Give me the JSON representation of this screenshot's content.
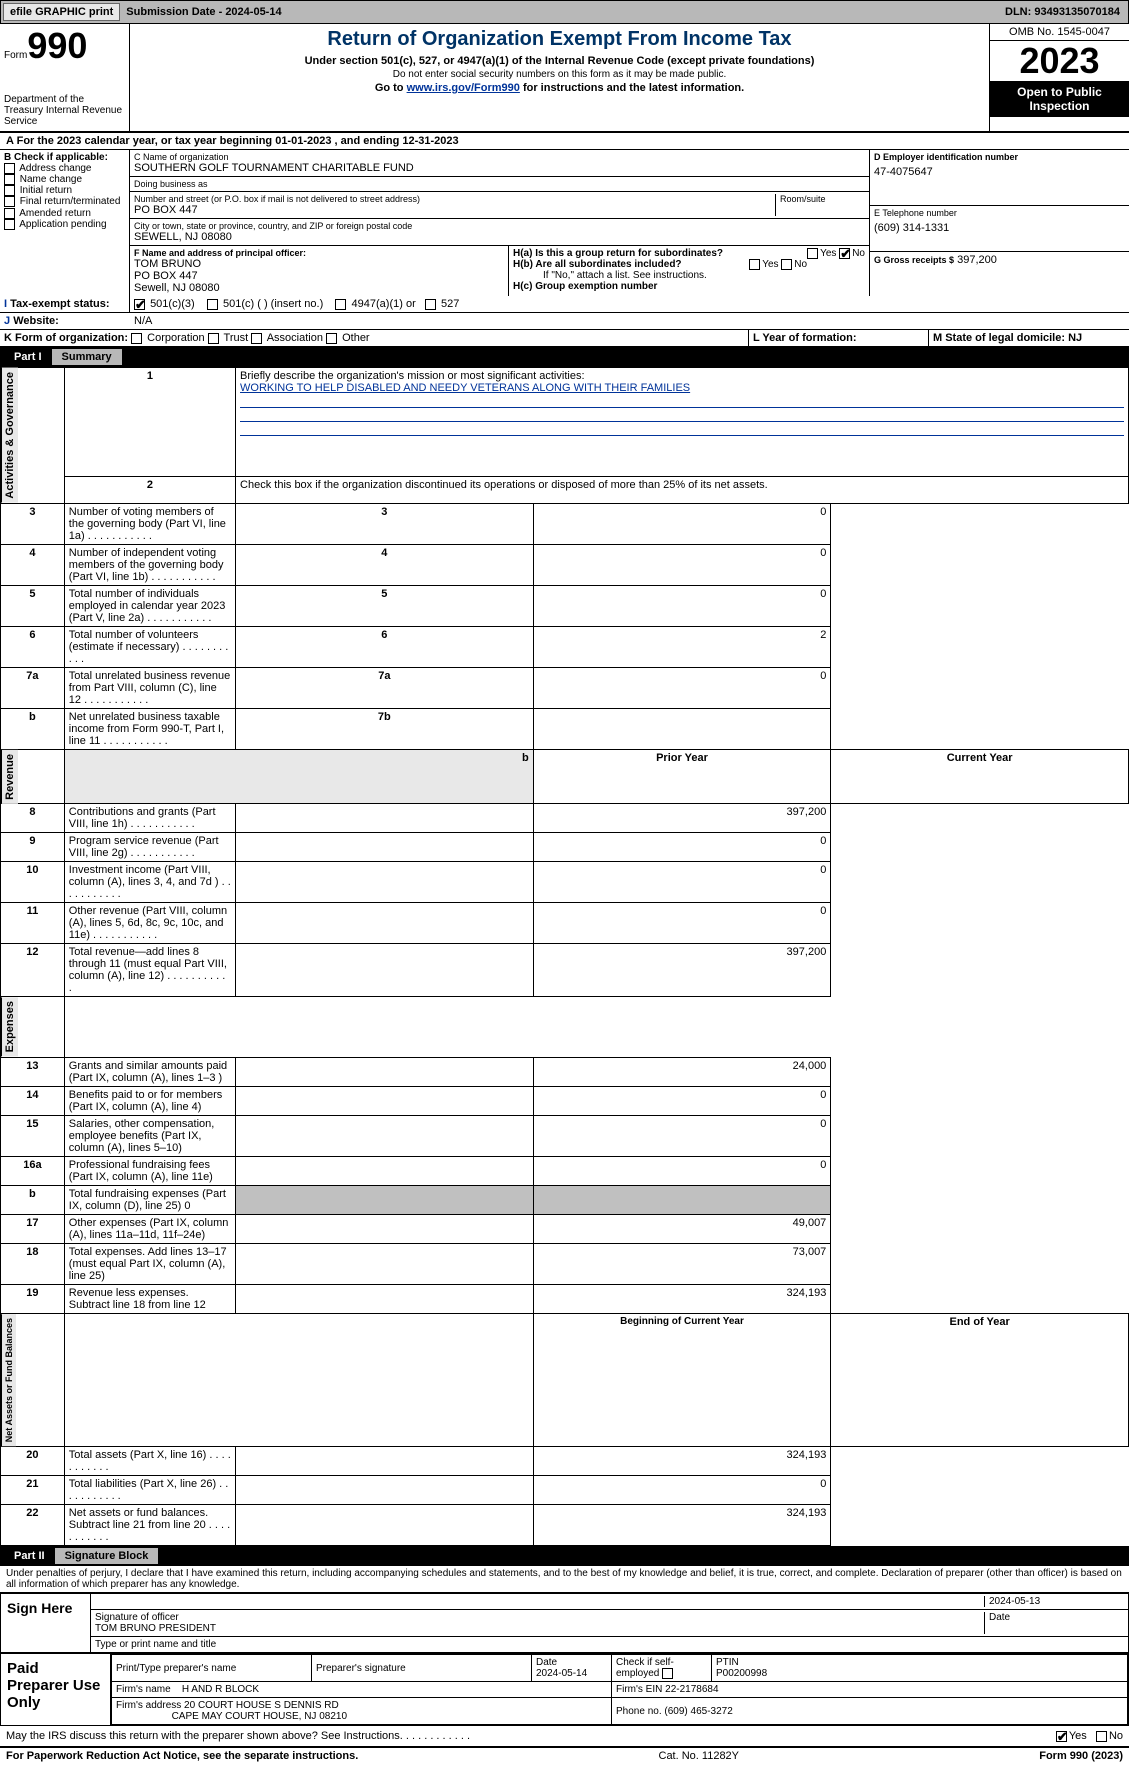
{
  "topbar": {
    "efile": "efile GRAPHIC print",
    "submission": "Submission Date - 2024-05-14",
    "dln": "DLN: 93493135070184"
  },
  "hdr": {
    "form_label": "Form",
    "form_no": "990",
    "dept": "Department of the Treasury Internal Revenue Service",
    "title": "Return of Organization Exempt From Income Tax",
    "sub": "Under section 501(c), 527, or 4947(a)(1) of the Internal Revenue Code (except private foundations)",
    "sub2": "Do not enter social security numbers on this form as it may be made public.",
    "goto_pre": "Go to ",
    "goto_link": "www.irs.gov/Form990",
    "goto_post": " for instructions and the latest information.",
    "omb": "OMB No. 1545-0047",
    "year": "2023",
    "open": "Open to Public Inspection"
  },
  "a": {
    "text": "For the 2023 calendar year, or tax year beginning 01-01-2023   , and ending 12-31-2023"
  },
  "b": {
    "label": "B Check if applicable:",
    "items": [
      "Address change",
      "Name change",
      "Initial return",
      "Final return/terminated",
      "Amended return",
      "Application pending"
    ]
  },
  "c": {
    "name_lbl": "C Name of organization",
    "name": "SOUTHERN GOLF TOURNAMENT CHARITABLE FUND",
    "dba_lbl": "Doing business as",
    "dba": "",
    "addr_lbl": "Number and street (or P.O. box if mail is not delivered to street address)",
    "room_lbl": "Room/suite",
    "addr": "PO BOX 447",
    "city_lbl": "City or town, state or province, country, and ZIP or foreign postal code",
    "city": "SEWELL, NJ  08080"
  },
  "d": {
    "lbl": "D Employer identification number",
    "val": "47-4075647"
  },
  "e": {
    "lbl": "E Telephone number",
    "val": "(609) 314-1331"
  },
  "g": {
    "lbl": "G Gross receipts $",
    "val": "397,200"
  },
  "f": {
    "lbl": "F  Name and address of principal officer:",
    "line1": "TOM BRUNO",
    "line2": "PO BOX 447",
    "line3": "Sewell, NJ  08080"
  },
  "h": {
    "a_lbl": "H(a)  Is this a group return for subordinates?",
    "a_yes": "Yes",
    "a_no": "No",
    "b_lbl": "H(b)  Are all subordinates included?",
    "b_yes": "Yes",
    "b_no": "No",
    "b_note": "If \"No,\" attach a list. See instructions.",
    "c_lbl": "H(c)  Group exemption number"
  },
  "i": {
    "lbl": "Tax-exempt status:",
    "opt1": "501(c)(3)",
    "opt2": "501(c) (  ) (insert no.)",
    "opt3": "4947(a)(1) or",
    "opt4": "527"
  },
  "j": {
    "lbl": "Website:",
    "val": "N/A"
  },
  "k": {
    "lbl": "K Form of organization:",
    "opts": [
      "Corporation",
      "Trust",
      "Association",
      "Other"
    ]
  },
  "l": {
    "lbl": "L Year of formation:",
    "val": ""
  },
  "m": {
    "lbl": "M State of legal domicile: NJ"
  },
  "part1": {
    "num": "Part I",
    "title": "Summary"
  },
  "p1": {
    "l1_lbl": "Briefly describe the organization's mission or most significant activities:",
    "l1_val": "WORKING TO HELP DISABLED AND NEEDY VETERANS ALONG WITH THEIR FAMILIES",
    "l2": "Check this box      if the organization discontinued its operations or disposed of more than 25% of its net assets.",
    "rows_gov": [
      {
        "n": "3",
        "t": "Number of voting members of the governing body (Part VI, line 1a)",
        "box": "3",
        "v": "0"
      },
      {
        "n": "4",
        "t": "Number of independent voting members of the governing body (Part VI, line 1b)",
        "box": "4",
        "v": "0"
      },
      {
        "n": "5",
        "t": "Total number of individuals employed in calendar year 2023 (Part V, line 2a)",
        "box": "5",
        "v": "0"
      },
      {
        "n": "6",
        "t": "Total number of volunteers (estimate if necessary)",
        "box": "6",
        "v": "2"
      },
      {
        "n": "7a",
        "t": "Total unrelated business revenue from Part VIII, column (C), line 12",
        "box": "7a",
        "v": "0"
      },
      {
        "n": "b",
        "t": "Net unrelated business taxable income from Form 990-T, Part I, line 11",
        "box": "7b",
        "v": ""
      }
    ],
    "hdr_prior": "Prior Year",
    "hdr_curr": "Current Year",
    "rows_rev": [
      {
        "n": "8",
        "t": "Contributions and grants (Part VIII, line 1h)",
        "p": "",
        "c": "397,200"
      },
      {
        "n": "9",
        "t": "Program service revenue (Part VIII, line 2g)",
        "p": "",
        "c": "0"
      },
      {
        "n": "10",
        "t": "Investment income (Part VIII, column (A), lines 3, 4, and 7d )",
        "p": "",
        "c": "0"
      },
      {
        "n": "11",
        "t": "Other revenue (Part VIII, column (A), lines 5, 6d, 8c, 9c, 10c, and 11e)",
        "p": "",
        "c": "0"
      },
      {
        "n": "12",
        "t": "Total revenue—add lines 8 through 11 (must equal Part VIII, column (A), line 12)",
        "p": "",
        "c": "397,200"
      }
    ],
    "rows_exp": [
      {
        "n": "13",
        "t": "Grants and similar amounts paid (Part IX, column (A), lines 1–3 )",
        "p": "",
        "c": "24,000"
      },
      {
        "n": "14",
        "t": "Benefits paid to or for members (Part IX, column (A), line 4)",
        "p": "",
        "c": "0"
      },
      {
        "n": "15",
        "t": "Salaries, other compensation, employee benefits (Part IX, column (A), lines 5–10)",
        "p": "",
        "c": "0"
      },
      {
        "n": "16a",
        "t": "Professional fundraising fees (Part IX, column (A), line 11e)",
        "p": "",
        "c": "0"
      },
      {
        "n": "b",
        "t": "Total fundraising expenses (Part IX, column (D), line 25) 0",
        "p": "shade",
        "c": "shade"
      },
      {
        "n": "17",
        "t": "Other expenses (Part IX, column (A), lines 11a–11d, 11f–24e)",
        "p": "",
        "c": "49,007"
      },
      {
        "n": "18",
        "t": "Total expenses. Add lines 13–17 (must equal Part IX, column (A), line 25)",
        "p": "",
        "c": "73,007"
      },
      {
        "n": "19",
        "t": "Revenue less expenses. Subtract line 18 from line 12",
        "p": "",
        "c": "324,193"
      }
    ],
    "hdr_beg": "Beginning of Current Year",
    "hdr_end": "End of Year",
    "rows_net": [
      {
        "n": "20",
        "t": "Total assets (Part X, line 16)",
        "p": "",
        "c": "324,193"
      },
      {
        "n": "21",
        "t": "Total liabilities (Part X, line 26)",
        "p": "",
        "c": "0"
      },
      {
        "n": "22",
        "t": "Net assets or fund balances. Subtract line 21 from line 20",
        "p": "",
        "c": "324,193"
      }
    ],
    "tab_gov": "Activities & Governance",
    "tab_rev": "Revenue",
    "tab_exp": "Expenses",
    "tab_net": "Net Assets or Fund Balances"
  },
  "part2": {
    "num": "Part II",
    "title": "Signature Block"
  },
  "perjury": "Under penalties of perjury, I declare that I have examined this return, including accompanying schedules and statements, and to the best of my knowledge and belief, it is true, correct, and complete. Declaration of preparer (other than officer) is based on all information of which preparer has any knowledge.",
  "sign": {
    "here": "Sign Here",
    "date": "2024-05-13",
    "sig_lbl": "Signature of officer",
    "date_lbl": "Date",
    "name": "TOM BRUNO PRESIDENT",
    "name_lbl": "Type or print name and title"
  },
  "paid": {
    "lbl": "Paid Preparer Use Only",
    "h1": "Print/Type preparer's name",
    "h2": "Preparer's signature",
    "h3": "Date",
    "h3v": "2024-05-14",
    "h4": "Check       if self-employed",
    "h5": "PTIN",
    "h5v": "P00200998",
    "firm_lbl": "Firm's name",
    "firm": "H AND R BLOCK",
    "ein_lbl": "Firm's EIN",
    "ein": "22-2178684",
    "addr_lbl": "Firm's address",
    "addr1": "20 COURT HOUSE S DENNIS RD",
    "addr2": "CAPE MAY COURT HOUSE, NJ  08210",
    "phone_lbl": "Phone no.",
    "phone": "(609) 465-3272"
  },
  "discuss": {
    "q": "May the IRS discuss this return with the preparer shown above? See Instructions.",
    "yes": "Yes",
    "no": "No"
  },
  "footer": {
    "l": "For Paperwork Reduction Act Notice, see the separate instructions.",
    "c": "Cat. No. 11282Y",
    "r": "Form 990 (2023)"
  }
}
